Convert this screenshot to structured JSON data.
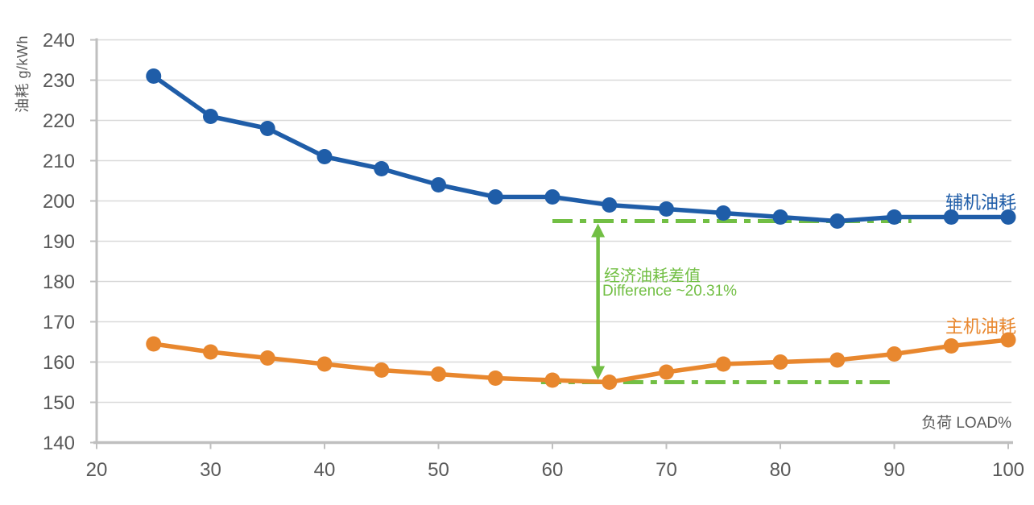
{
  "chart_data": {
    "type": "line",
    "title": "",
    "ylabel": "油耗 g/kWh",
    "xlabel": "负荷 LOAD%",
    "x": [
      25,
      30,
      35,
      40,
      45,
      50,
      55,
      60,
      65,
      70,
      75,
      80,
      85,
      90,
      95,
      100
    ],
    "series": [
      {
        "name": "辅机油耗",
        "id": "auxiliary-engine",
        "color": "#1f5da8",
        "values": [
          231,
          221,
          218,
          211,
          208,
          204,
          201,
          201,
          199,
          198,
          197,
          196,
          195,
          196,
          196,
          196
        ]
      },
      {
        "name": "主机油耗",
        "id": "main-engine",
        "color": "#e8872e",
        "values": [
          164.5,
          162.5,
          161,
          159.5,
          158,
          157,
          156,
          155.5,
          155,
          157.5,
          159.5,
          160,
          160.5,
          162,
          164,
          165.5
        ]
      }
    ],
    "xlim": [
      20,
      100
    ],
    "ylim": [
      140,
      240
    ],
    "x_ticks": [
      20,
      30,
      40,
      50,
      60,
      70,
      80,
      90,
      100
    ],
    "y_ticks": [
      140,
      150,
      160,
      170,
      180,
      190,
      200,
      210,
      220,
      230,
      240
    ],
    "grid": "horizontal",
    "legend_position": "inline-right-of-lines",
    "annotation": {
      "label_zh": "经济油耗差值",
      "label_en": "Difference ~20.31%",
      "color": "#72bf44",
      "arrow_x": 64,
      "upper_ref_value": 195,
      "lower_ref_value": 155,
      "upper_dash_x_span": [
        60,
        91.5
      ],
      "lower_dash_x_span": [
        59,
        90
      ]
    },
    "axis_color": "#bfbfbf",
    "gridline_color": "#d9d9d9",
    "text_color": "#595959"
  }
}
